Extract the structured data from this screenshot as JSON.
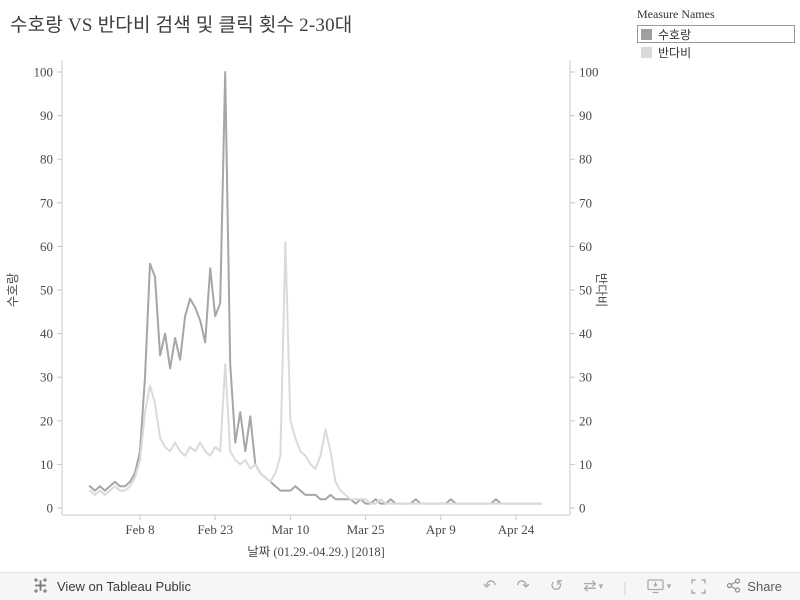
{
  "title": "수호랑 VS 반다비 검색 및 클릭 횟수 2-30대",
  "legend": {
    "title": "Measure Names",
    "items": [
      {
        "label": "수호랑",
        "color": "#9ba0a3",
        "selected": true
      },
      {
        "label": "반다비",
        "color": "#d9dadb",
        "selected": false
      }
    ]
  },
  "chart_data": {
    "type": "line",
    "x_axis_title": "날짜 (01.29.-04.29.) [2018]",
    "left_y_axis_title": "수호랑",
    "right_y_axis_title": "반다비",
    "ylim": [
      0,
      100
    ],
    "y_tick_step": 10,
    "x_ticks": [
      {
        "label": "Feb 8",
        "day": 10
      },
      {
        "label": "Feb 23",
        "day": 25
      },
      {
        "label": "Mar 10",
        "day": 40
      },
      {
        "label": "Mar 25",
        "day": 55
      },
      {
        "label": "Apr 9",
        "day": 70
      },
      {
        "label": "Apr 24",
        "day": 85
      }
    ],
    "series": [
      {
        "name": "수호랑",
        "axis": "left",
        "color": "#a3a7aa",
        "values": [
          5,
          4,
          5,
          4,
          5,
          6,
          5,
          5,
          6,
          8,
          13,
          30,
          56,
          53,
          35,
          40,
          32,
          39,
          34,
          44,
          48,
          46,
          43,
          38,
          55,
          44,
          47,
          100,
          33,
          15,
          22,
          13,
          21,
          10,
          8,
          7,
          6,
          5,
          4,
          4,
          4,
          5,
          4,
          3,
          3,
          3,
          2,
          2,
          3,
          2,
          2,
          2,
          2,
          1,
          2,
          1,
          1,
          2,
          1,
          1,
          2,
          1,
          1,
          1,
          1,
          2,
          1,
          1,
          1,
          1,
          1,
          1,
          2,
          1,
          1,
          1,
          1,
          1,
          1,
          1,
          1,
          2,
          1,
          1,
          1,
          1,
          1,
          1,
          1,
          1,
          1
        ]
      },
      {
        "name": "반다비",
        "axis": "right",
        "color": "#d9dadb",
        "values": [
          4,
          3,
          4,
          3,
          4,
          5,
          4,
          4,
          5,
          7,
          11,
          22,
          28,
          24,
          16,
          14,
          13,
          15,
          13,
          12,
          14,
          13,
          15,
          13,
          12,
          14,
          13,
          33,
          13,
          11,
          10,
          11,
          9,
          10,
          8,
          7,
          6,
          8,
          12,
          61,
          20,
          16,
          13,
          12,
          10,
          9,
          12,
          18,
          13,
          6,
          4,
          3,
          2,
          2,
          2,
          2,
          1,
          1,
          2,
          1,
          1,
          1,
          1,
          1,
          1,
          1,
          1,
          1,
          1,
          1,
          1,
          1,
          1,
          1,
          1,
          1,
          1,
          1,
          1,
          1,
          1,
          1,
          1,
          1,
          1,
          1,
          1,
          1,
          1,
          1,
          1
        ]
      }
    ]
  },
  "toolbar": {
    "view_link_label": "View on Tableau Public",
    "share_label": "Share",
    "glyphs": {
      "undo": "↶",
      "redo": "↷",
      "replay": "↺",
      "toggle": "⇄",
      "caret": "▾",
      "separator": "|"
    }
  }
}
